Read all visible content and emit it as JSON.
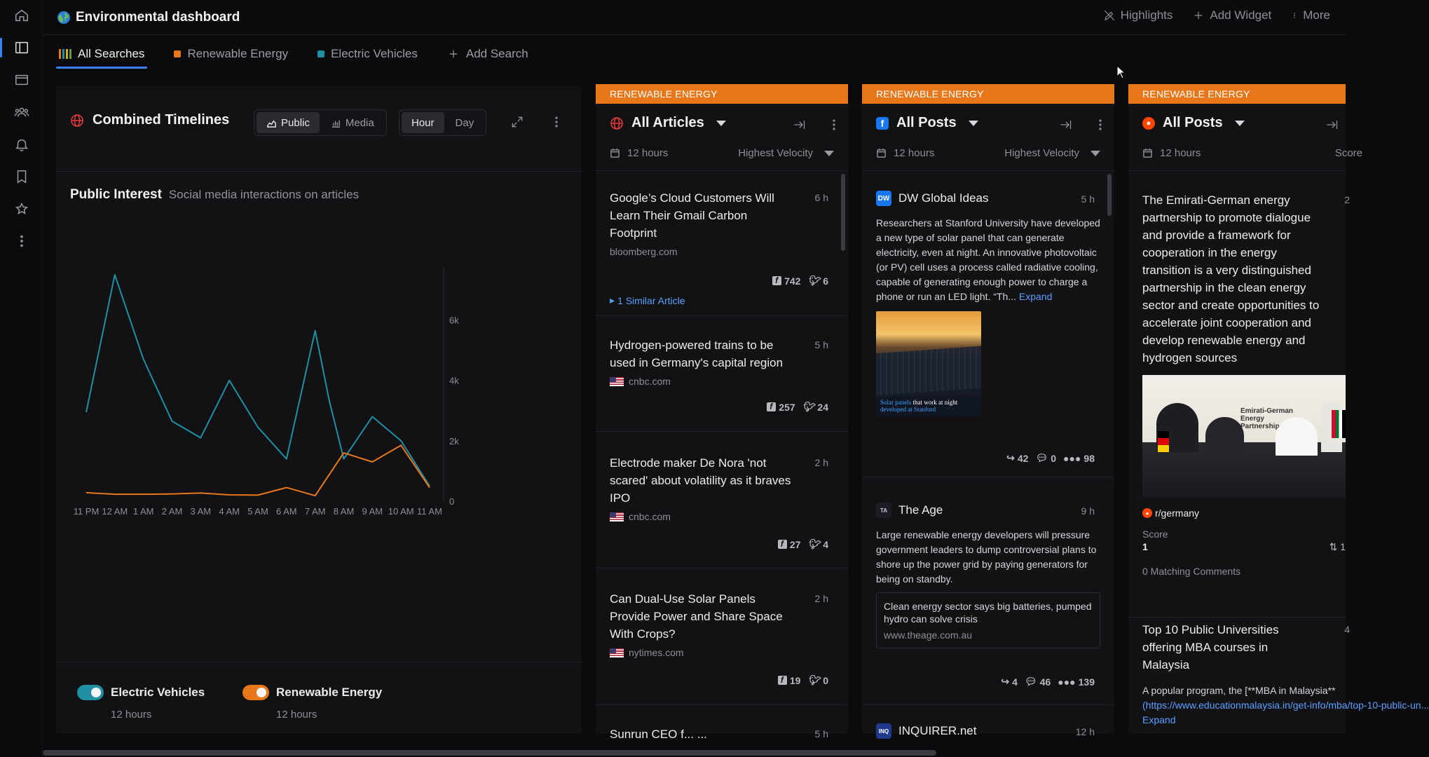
{
  "app": {
    "title": "Environmental dashboard"
  },
  "top_actions": {
    "highlights": "Highlights",
    "add_widget": "Add Widget",
    "more": "More"
  },
  "tabs": [
    {
      "label": "All Searches",
      "active": true,
      "color": "#3b82f6"
    },
    {
      "label": "Renewable Energy",
      "active": false,
      "color": "#e8771a"
    },
    {
      "label": "Electric Vehicles",
      "active": false,
      "color": "#1f8fa3"
    },
    {
      "label": "Add Search",
      "active": false
    }
  ],
  "timeline": {
    "title": "Combined Timelines",
    "source_toggle": {
      "public": "Public",
      "media": "Media",
      "selected": "Public"
    },
    "interval_toggle": {
      "hour": "Hour",
      "day": "Day",
      "selected": "Hour"
    },
    "panel_title": "Public Interest",
    "panel_subtitle": "Social media interactions on articles",
    "legend": [
      {
        "name": "Electric Vehicles",
        "sub": "12 hours",
        "color": "#1f8fa3"
      },
      {
        "name": "Renewable Energy",
        "sub": "12 hours",
        "color": "#e8771a"
      }
    ]
  },
  "chart_data": {
    "type": "line",
    "x": [
      "11 PM",
      "12 AM",
      "1 AM",
      "2 AM",
      "3 AM",
      "4 AM",
      "5 AM",
      "6 AM",
      "7 AM",
      "8 AM",
      "9 AM",
      "10 AM",
      "11 AM"
    ],
    "y_ticks": [
      "0",
      "2k",
      "4k",
      "6k"
    ],
    "ylim": [
      0,
      7500
    ],
    "y_axis_side": "right",
    "grid": false,
    "series": [
      {
        "name": "Electric Vehicles",
        "color": "#1f8fa3",
        "points": [
          [
            0,
            2950
          ],
          [
            1,
            7500
          ],
          [
            2,
            4700
          ],
          [
            3,
            2650
          ],
          [
            4,
            2100
          ],
          [
            5,
            4000
          ],
          [
            6,
            2450
          ],
          [
            7,
            1400
          ],
          [
            8,
            5650
          ],
          [
            8.5,
            3300
          ],
          [
            9,
            1400
          ],
          [
            10,
            2800
          ],
          [
            11,
            2000
          ],
          [
            12,
            500
          ]
        ]
      },
      {
        "name": "Renewable Energy",
        "color": "#e8771a",
        "points": [
          [
            0,
            280
          ],
          [
            1,
            230
          ],
          [
            2,
            230
          ],
          [
            3,
            240
          ],
          [
            4,
            270
          ],
          [
            5,
            210
          ],
          [
            6,
            200
          ],
          [
            7,
            450
          ],
          [
            8,
            180
          ],
          [
            9,
            1600
          ],
          [
            10,
            1300
          ],
          [
            11,
            1850
          ],
          [
            12,
            450
          ]
        ]
      }
    ]
  },
  "columns": [
    {
      "banner": "RENEWABLE ENERGY",
      "name": "All Articles",
      "window": "12 hours",
      "sort": "Highest Velocity",
      "items": [
        {
          "headline": "Google’s Cloud Customers Will Learn Their Gmail Carbon Footprint",
          "age": "6 h",
          "source": "bloomberg.com",
          "fb": "742",
          "tw": "6",
          "similar": "1 Similar Article"
        },
        {
          "headline": "Hydrogen-powered trains to be used in Germany's capital region",
          "age": "5 h",
          "source": "cnbc.com",
          "fb": "257",
          "tw": "24"
        },
        {
          "headline": "Electrode maker De Nora 'not scared' about volatility as it braves IPO",
          "age": "2 h",
          "source": "cnbc.com",
          "fb": "27",
          "tw": "4"
        },
        {
          "headline": "Can Dual-Use Solar Panels Provide Power and Share Space With Crops?",
          "age": "2 h",
          "source": "nytimes.com",
          "fb": "19",
          "tw": "0"
        },
        {
          "headline": "Sunrun CEO f... ...",
          "age": "5 h"
        }
      ]
    },
    {
      "banner": "RENEWABLE ENERGY",
      "name": "All Posts",
      "window": "12 hours",
      "sort": "Highest Velocity",
      "posts": [
        {
          "source": "DW Global Ideas",
          "age": "5 h",
          "text": "Researchers at Stanford University have developed a new type of solar panel that can generate electricity, even at night. An innovative photovoltaic (or PV) cell uses a process called radiative cooling, capable of generating enough power to charge a phone or run an LED light. “Th...",
          "expand": "Expand",
          "image_caption_a": "Solar panels",
          "image_caption_b": "that work at night",
          "image_caption_c": "developed at Stanford",
          "shares": "42",
          "comments": "0",
          "reactions": "98"
        },
        {
          "source": "The Age",
          "age": "9 h",
          "text": "Large renewable energy developers will pressure government leaders to dump controversial plans to shore up the power grid by paying generators for being on standby.",
          "link_title": "Clean energy sector says big batteries, pumped hydro can solve crisis",
          "link_url": "www.theage.com.au",
          "shares": "4",
          "comments": "46",
          "reactions": "139"
        },
        {
          "source": "INQUIRER.net",
          "age": "12 h"
        }
      ]
    },
    {
      "banner": "RENEWABLE ENERGY",
      "name": "All Posts",
      "window": "12 hours",
      "sort": "Score",
      "posts": [
        {
          "text": "The Emirati-German energy partnership to promote dialogue and provide a framework for cooperation in the energy transition is a very distinguished partnership in the clean energy sector and create opportunities to accelerate joint cooperation and develop renewable energy and hydrogen sources",
          "age": "2",
          "image_caption": "Emirati-German Energy Partnership",
          "subreddit": "r/germany",
          "score_label": "Score",
          "score": "1",
          "votes": "1",
          "matching": "0 Matching Comments"
        },
        {
          "text": "Top 10 Public Universities offering MBA courses in Malaysia",
          "age": "4",
          "body_a": "A popular program, the [**MBA in Malaysia**",
          "body_b": "(https://www.educationmalaysia.in/get-info/mba/top-10-public-un...",
          "expand": "Expand"
        }
      ]
    }
  ]
}
